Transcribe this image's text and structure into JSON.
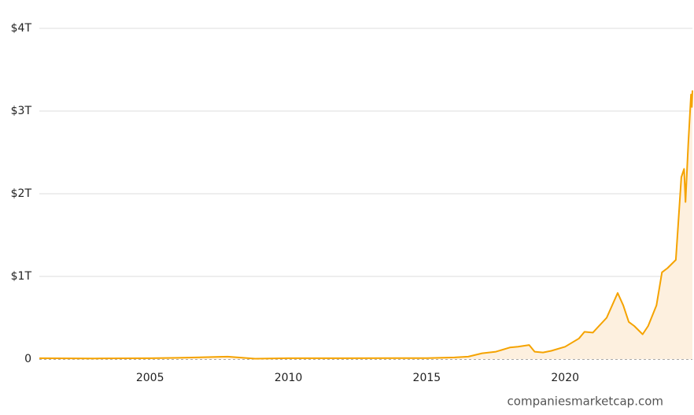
{
  "chart_data": {
    "type": "area",
    "x": [
      2001,
      2003,
      2005,
      2006,
      2007.8,
      2008.8,
      2010,
      2012,
      2015,
      2016,
      2016.5,
      2017,
      2017.5,
      2018,
      2018.3,
      2018.7,
      2018.9,
      2019.2,
      2019.5,
      2020,
      2020.5,
      2020.7,
      2021,
      2021.5,
      2021.9,
      2022.1,
      2022.3,
      2022.5,
      2022.8,
      2023,
      2023.3,
      2023.5,
      2023.7,
      2024,
      2024.2,
      2024.3,
      2024.35,
      2024.45,
      2024.55,
      2024.58,
      2024.6
    ],
    "values": [
      0.01,
      0.008,
      0.01,
      0.015,
      0.03,
      0.005,
      0.01,
      0.01,
      0.012,
      0.02,
      0.03,
      0.07,
      0.09,
      0.14,
      0.15,
      0.17,
      0.09,
      0.08,
      0.1,
      0.15,
      0.25,
      0.33,
      0.32,
      0.5,
      0.8,
      0.65,
      0.45,
      0.4,
      0.3,
      0.4,
      0.65,
      1.05,
      1.1,
      1.2,
      2.2,
      2.3,
      1.9,
      2.6,
      3.2,
      3.05,
      3.25
    ],
    "color": "#f5a300",
    "fill_color": "#fdf0df",
    "xlim": [
      2001,
      2024.6
    ],
    "xticks": [
      2005,
      2010,
      2015,
      2020
    ],
    "ylim": [
      0,
      4
    ],
    "yticks": [
      0,
      {
        "value": 1,
        "label": "$1T"
      },
      {
        "value": 2,
        "label": "$2T"
      },
      {
        "value": 3,
        "label": "$3T"
      },
      {
        "value": 4,
        "label": "$4T"
      }
    ],
    "grid": true,
    "source": "companiesmarketcap.com"
  }
}
